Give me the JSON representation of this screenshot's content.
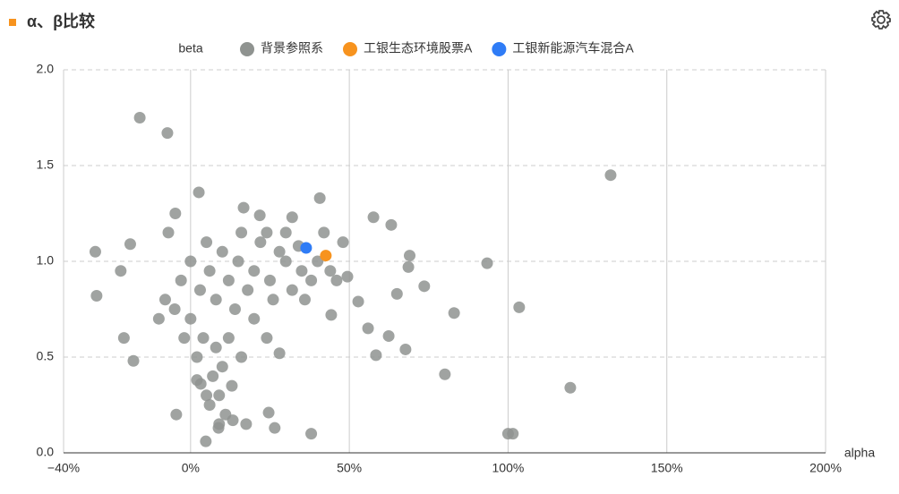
{
  "chart_data": {
    "type": "scatter",
    "title": "α、β比较",
    "x_label": "alpha",
    "y_label": "beta",
    "xlim": [
      -40,
      200
    ],
    "ylim": [
      0,
      2
    ],
    "xticks": [
      {
        "value": -40,
        "label": "−40%"
      },
      {
        "value": 0,
        "label": "0%"
      },
      {
        "value": 50,
        "label": "50%"
      },
      {
        "value": 100,
        "label": "100%"
      },
      {
        "value": 150,
        "label": "150%"
      },
      {
        "value": 200,
        "label": "200%"
      }
    ],
    "yticks": [
      {
        "value": 0,
        "label": "0.0"
      },
      0.5,
      {
        "value": 1,
        "label": "1.0"
      },
      1.5,
      {
        "value": 2,
        "label": "2.0"
      }
    ],
    "grid": true,
    "series": [
      {
        "name": "背景参照系",
        "color": "#8f9390",
        "x": [
          -16,
          -7.3,
          132.3,
          93.4,
          103.5,
          119.6,
          83,
          80.1,
          100,
          101.5,
          -30,
          -29.6,
          -22,
          -19,
          -18,
          -21,
          2.6,
          -4.8,
          -7,
          73.6,
          67.7,
          69,
          58.4,
          55.9,
          62.4,
          65,
          68.6,
          57.6,
          63.2,
          40.7,
          38,
          28,
          24.6,
          26.5,
          4.8,
          -4.5,
          16.7,
          21.8,
          32,
          52.8,
          44.3,
          49.4,
          8.8,
          13.3,
          17.5,
          3.2,
          5,
          10,
          15,
          20,
          25,
          30,
          35,
          12,
          18,
          22,
          28,
          8,
          14,
          20,
          26,
          32,
          38,
          6,
          3,
          -3,
          -5,
          0,
          4,
          8,
          10,
          7,
          9,
          6,
          11,
          13,
          16,
          12,
          24,
          2,
          -2,
          -8,
          -10,
          0,
          16,
          24,
          30,
          34,
          40,
          44,
          46,
          48,
          42,
          36,
          9,
          5,
          2
        ],
        "values": [
          1.75,
          1.67,
          1.45,
          0.99,
          0.76,
          0.34,
          0.73,
          0.41,
          0.1,
          0.1,
          1.05,
          0.82,
          0.95,
          1.09,
          0.48,
          0.6,
          1.36,
          1.25,
          1.15,
          0.87,
          0.54,
          1.03,
          0.51,
          0.65,
          0.61,
          0.83,
          0.97,
          1.23,
          1.19,
          1.33,
          0.1,
          0.52,
          0.21,
          0.13,
          0.06,
          0.2,
          1.28,
          1.24,
          1.23,
          0.79,
          0.72,
          0.92,
          0.13,
          0.17,
          0.15,
          0.36,
          1.1,
          1.05,
          1.0,
          0.95,
          0.9,
          1.0,
          0.95,
          0.9,
          0.85,
          1.1,
          1.05,
          0.8,
          0.75,
          0.7,
          0.8,
          0.85,
          0.9,
          0.95,
          0.85,
          0.9,
          0.75,
          0.7,
          0.6,
          0.55,
          0.45,
          0.4,
          0.3,
          0.25,
          0.2,
          0.35,
          0.5,
          0.6,
          0.6,
          0.5,
          0.6,
          0.8,
          0.7,
          1.0,
          1.15,
          1.15,
          1.15,
          1.08,
          1.0,
          0.95,
          0.9,
          1.1,
          1.15,
          0.8,
          0.15,
          0.3,
          0.38
        ]
      },
      {
        "name": "工银生态环境股票A",
        "color": "#f7931e",
        "x": [
          42.6
        ],
        "values": [
          1.03
        ]
      },
      {
        "name": "工银新能源汽车混合A",
        "color": "#2f7cf6",
        "x": [
          36.4
        ],
        "values": [
          1.07
        ]
      }
    ]
  }
}
